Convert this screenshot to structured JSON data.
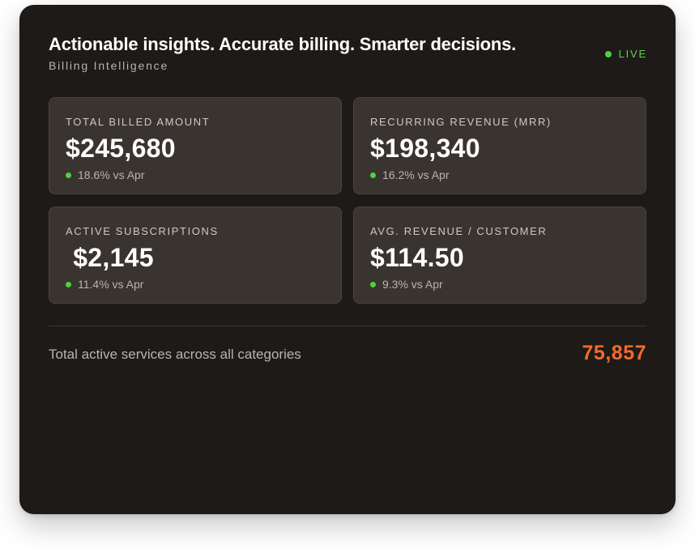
{
  "header": {
    "title": "Actionable insights. Accurate billing. Smarter decisions.",
    "subtitle": "Billing Intelligence",
    "status": "LIVE"
  },
  "metrics": [
    {
      "label": "TOTAL BILLED AMOUNT",
      "value": "$245,680",
      "change": "18.6% vs Apr"
    },
    {
      "label": "RECURRING REVENUE (MRR)",
      "value": "$198,340",
      "change": "16.2% vs Apr"
    },
    {
      "label": "ACTIVE SUBSCRIPTIONS",
      "value": " $2,145",
      "change": "11.4% vs Apr"
    },
    {
      "label": "AVG. REVENUE / CUSTOMER",
      "value": "$114.50",
      "change": "9.3% vs Apr"
    }
  ],
  "footer": {
    "label": "Total active services across all categories",
    "value": "75,857"
  },
  "colors": {
    "background": "#1d1a18",
    "card": "#3a3430",
    "live_green": "#4fd13e",
    "accent_orange": "#f26b2a"
  },
  "icons": {
    "status": "green-dot-icon",
    "trend": "green-dot-icon"
  }
}
